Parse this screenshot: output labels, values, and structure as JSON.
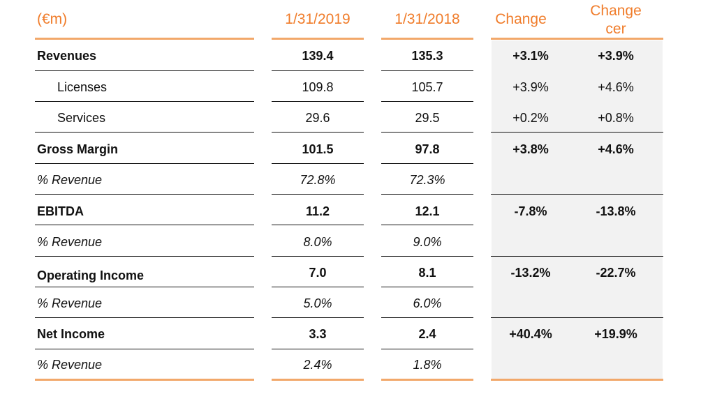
{
  "header": {
    "label": "(€m)",
    "col1": "1/31/2019",
    "col2": "1/31/2018",
    "col3": "Change",
    "col4_line1": "Change",
    "col4_line2": "cer"
  },
  "rows": [
    {
      "label": "Revenues",
      "v1": "139.4",
      "v2": "135.3",
      "c": "+3.1%",
      "cer": "+3.9%"
    },
    {
      "label": "Licenses",
      "v1": "109.8",
      "v2": "105.7",
      "c": "+3.9%",
      "cer": "+4.6%"
    },
    {
      "label": "Services",
      "v1": "29.6",
      "v2": "29.5",
      "c": "+0.2%",
      "cer": "+0.8%"
    },
    {
      "label": "Gross Margin",
      "v1": "101.5",
      "v2": "97.8",
      "c": "+3.8%",
      "cer": "+4.6%"
    },
    {
      "label": "% Revenue",
      "v1": "72.8%",
      "v2": "72.3%",
      "c": "",
      "cer": ""
    },
    {
      "label": "EBITDA",
      "v1": "11.2",
      "v2": "12.1",
      "c": "-7.8%",
      "cer": "-13.8%"
    },
    {
      "label": "% Revenue",
      "v1": "8.0%",
      "v2": "9.0%",
      "c": "",
      "cer": ""
    },
    {
      "label": "Operating Income",
      "v1": "7.0",
      "v2": "8.1",
      "c": "-13.2%",
      "cer": "-22.7%"
    },
    {
      "label": "% Revenue",
      "v1": "5.0%",
      "v2": "6.0%",
      "c": "",
      "cer": ""
    },
    {
      "label": "Net Income",
      "v1": "3.3",
      "v2": "2.4",
      "c": "+40.4%",
      "cer": "+19.9%"
    },
    {
      "label": "% Revenue",
      "v1": "2.4%",
      "v2": "1.8%",
      "c": "",
      "cer": ""
    }
  ],
  "colors": {
    "accent": "#f07c2a",
    "rule_orange": "#f2a86a",
    "shade": "#f2f2f2"
  }
}
